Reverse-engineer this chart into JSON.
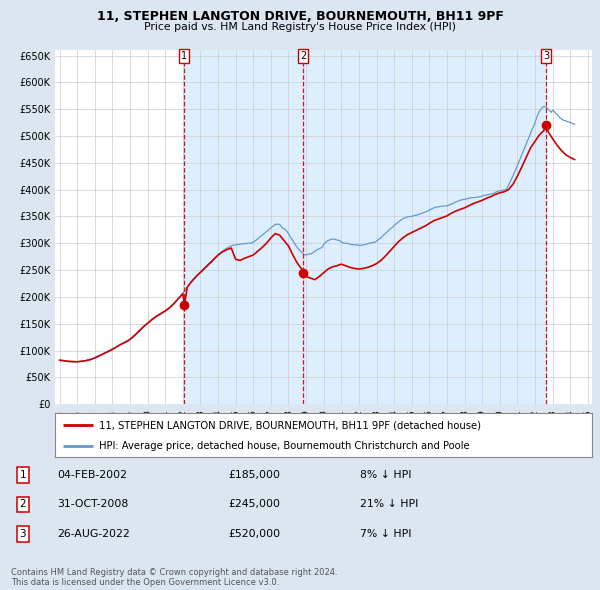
{
  "title": "11, STEPHEN LANGTON DRIVE, BOURNEMOUTH, BH11 9PF",
  "subtitle": "Price paid vs. HM Land Registry's House Price Index (HPI)",
  "property_label": "11, STEPHEN LANGTON DRIVE, BOURNEMOUTH, BH11 9PF (detached house)",
  "hpi_label": "HPI: Average price, detached house, Bournemouth Christchurch and Poole",
  "property_color": "#cc0000",
  "hpi_color": "#6699cc",
  "background_color": "#dce6f1",
  "plot_bg_color": "#ffffff",
  "shade_color": "#ddeeff",
  "ylim": [
    0,
    660000
  ],
  "yticks": [
    0,
    50000,
    100000,
    150000,
    200000,
    250000,
    300000,
    350000,
    400000,
    450000,
    500000,
    550000,
    600000,
    650000
  ],
  "sales": [
    {
      "num": 1,
      "date": 2002.09,
      "price": 185000,
      "label": "04-FEB-2002",
      "pct": "8% ↓ HPI"
    },
    {
      "num": 2,
      "date": 2008.83,
      "price": 245000,
      "label": "31-OCT-2008",
      "pct": "21% ↓ HPI"
    },
    {
      "num": 3,
      "date": 2022.65,
      "price": 520000,
      "label": "26-AUG-2022",
      "pct": "7% ↓ HPI"
    }
  ],
  "copyright": "Contains HM Land Registry data © Crown copyright and database right 2024.\nThis data is licensed under the Open Government Licence v3.0.",
  "xlim": [
    1994.75,
    2025.25
  ],
  "hpi_data_x": [
    1995.0,
    1995.083,
    1995.167,
    1995.25,
    1995.333,
    1995.417,
    1995.5,
    1995.583,
    1995.667,
    1995.75,
    1995.833,
    1995.917,
    1996.0,
    1996.083,
    1996.167,
    1996.25,
    1996.333,
    1996.417,
    1996.5,
    1996.583,
    1996.667,
    1996.75,
    1996.833,
    1996.917,
    1997.0,
    1997.083,
    1997.167,
    1997.25,
    1997.333,
    1997.417,
    1997.5,
    1997.583,
    1997.667,
    1997.75,
    1997.833,
    1997.917,
    1998.0,
    1998.083,
    1998.167,
    1998.25,
    1998.333,
    1998.417,
    1998.5,
    1998.583,
    1998.667,
    1998.75,
    1998.833,
    1998.917,
    1999.0,
    1999.083,
    1999.167,
    1999.25,
    1999.333,
    1999.417,
    1999.5,
    1999.583,
    1999.667,
    1999.75,
    1999.833,
    1999.917,
    2000.0,
    2000.083,
    2000.167,
    2000.25,
    2000.333,
    2000.417,
    2000.5,
    2000.583,
    2000.667,
    2000.75,
    2000.833,
    2000.917,
    2001.0,
    2001.083,
    2001.167,
    2001.25,
    2001.333,
    2001.417,
    2001.5,
    2001.583,
    2001.667,
    2001.75,
    2001.833,
    2001.917,
    2002.0,
    2002.083,
    2002.167,
    2002.25,
    2002.333,
    2002.417,
    2002.5,
    2002.583,
    2002.667,
    2002.75,
    2002.833,
    2002.917,
    2003.0,
    2003.083,
    2003.167,
    2003.25,
    2003.333,
    2003.417,
    2003.5,
    2003.583,
    2003.667,
    2003.75,
    2003.833,
    2003.917,
    2004.0,
    2004.083,
    2004.167,
    2004.25,
    2004.333,
    2004.417,
    2004.5,
    2004.583,
    2004.667,
    2004.75,
    2004.833,
    2004.917,
    2005.0,
    2005.083,
    2005.167,
    2005.25,
    2005.333,
    2005.417,
    2005.5,
    2005.583,
    2005.667,
    2005.75,
    2005.833,
    2005.917,
    2006.0,
    2006.083,
    2006.167,
    2006.25,
    2006.333,
    2006.417,
    2006.5,
    2006.583,
    2006.667,
    2006.75,
    2006.833,
    2006.917,
    2007.0,
    2007.083,
    2007.167,
    2007.25,
    2007.333,
    2007.417,
    2007.5,
    2007.583,
    2007.667,
    2007.75,
    2007.833,
    2007.917,
    2008.0,
    2008.083,
    2008.167,
    2008.25,
    2008.333,
    2008.417,
    2008.5,
    2008.583,
    2008.667,
    2008.75,
    2008.833,
    2008.917,
    2009.0,
    2009.083,
    2009.167,
    2009.25,
    2009.333,
    2009.417,
    2009.5,
    2009.583,
    2009.667,
    2009.75,
    2009.833,
    2009.917,
    2010.0,
    2010.083,
    2010.167,
    2010.25,
    2010.333,
    2010.417,
    2010.5,
    2010.583,
    2010.667,
    2010.75,
    2010.833,
    2010.917,
    2011.0,
    2011.083,
    2011.167,
    2011.25,
    2011.333,
    2011.417,
    2011.5,
    2011.583,
    2011.667,
    2011.75,
    2011.833,
    2011.917,
    2012.0,
    2012.083,
    2012.167,
    2012.25,
    2012.333,
    2012.417,
    2012.5,
    2012.583,
    2012.667,
    2012.75,
    2012.833,
    2012.917,
    2013.0,
    2013.083,
    2013.167,
    2013.25,
    2013.333,
    2013.417,
    2013.5,
    2013.583,
    2013.667,
    2013.75,
    2013.833,
    2013.917,
    2014.0,
    2014.083,
    2014.167,
    2014.25,
    2014.333,
    2014.417,
    2014.5,
    2014.583,
    2014.667,
    2014.75,
    2014.833,
    2014.917,
    2015.0,
    2015.083,
    2015.167,
    2015.25,
    2015.333,
    2015.417,
    2015.5,
    2015.583,
    2015.667,
    2015.75,
    2015.833,
    2015.917,
    2016.0,
    2016.083,
    2016.167,
    2016.25,
    2016.333,
    2016.417,
    2016.5,
    2016.583,
    2016.667,
    2016.75,
    2016.833,
    2016.917,
    2017.0,
    2017.083,
    2017.167,
    2017.25,
    2017.333,
    2017.417,
    2017.5,
    2017.583,
    2017.667,
    2017.75,
    2017.833,
    2017.917,
    2018.0,
    2018.083,
    2018.167,
    2018.25,
    2018.333,
    2018.417,
    2018.5,
    2018.583,
    2018.667,
    2018.75,
    2018.833,
    2018.917,
    2019.0,
    2019.083,
    2019.167,
    2019.25,
    2019.333,
    2019.417,
    2019.5,
    2019.583,
    2019.667,
    2019.75,
    2019.833,
    2019.917,
    2020.0,
    2020.083,
    2020.167,
    2020.25,
    2020.333,
    2020.417,
    2020.5,
    2020.583,
    2020.667,
    2020.75,
    2020.833,
    2020.917,
    2021.0,
    2021.083,
    2021.167,
    2021.25,
    2021.333,
    2021.417,
    2021.5,
    2021.583,
    2021.667,
    2021.75,
    2021.833,
    2021.917,
    2022.0,
    2022.083,
    2022.167,
    2022.25,
    2022.333,
    2022.417,
    2022.5,
    2022.583,
    2022.667,
    2022.75,
    2022.833,
    2022.917,
    2023.0,
    2023.083,
    2023.167,
    2023.25,
    2023.333,
    2023.417,
    2023.5,
    2023.583,
    2023.667,
    2023.75,
    2023.833,
    2023.917,
    2024.0,
    2024.083,
    2024.167,
    2024.25
  ],
  "hpi_data_y": [
    82000,
    81500,
    81000,
    80500,
    80000,
    79500,
    79000,
    79000,
    79000,
    78500,
    78500,
    78800,
    79000,
    79300,
    79700,
    80000,
    80500,
    81200,
    82000,
    82800,
    83500,
    84000,
    84500,
    85500,
    87000,
    88500,
    90000,
    91000,
    92000,
    93500,
    95000,
    96500,
    97500,
    99000,
    100500,
    101800,
    103000,
    104500,
    106000,
    107000,
    108200,
    109500,
    111000,
    112200,
    113500,
    115000,
    116500,
    117800,
    120000,
    122000,
    124500,
    127000,
    129500,
    132000,
    135000,
    137500,
    140000,
    143000,
    146000,
    148000,
    150000,
    152000,
    154500,
    157000,
    159000,
    161000,
    163000,
    164500,
    166000,
    168000,
    170000,
    171500,
    173000,
    175000,
    177000,
    179000,
    181500,
    184000,
    187000,
    190500,
    193500,
    197000,
    200500,
    203500,
    207000,
    211000,
    214500,
    218000,
    222000,
    225500,
    228000,
    231000,
    234000,
    237000,
    240500,
    243000,
    245000,
    247500,
    250000,
    253000,
    255500,
    258500,
    261000,
    263000,
    265000,
    269000,
    272000,
    274500,
    277000,
    280000,
    282500,
    285000,
    287000,
    289000,
    291000,
    292000,
    293500,
    295000,
    296000,
    296500,
    297000,
    297500,
    298000,
    298000,
    298500,
    299000,
    299000,
    299500,
    300000,
    300000,
    300200,
    300500,
    302000,
    304000,
    306000,
    308000,
    310500,
    313000,
    315000,
    317000,
    319500,
    322000,
    324000,
    326500,
    329000,
    331000,
    332500,
    335000,
    335500,
    335500,
    335000,
    332000,
    328000,
    327000,
    325000,
    322000,
    318000,
    313000,
    309000,
    305000,
    300000,
    296000,
    292000,
    289000,
    286000,
    283000,
    280500,
    278500,
    278000,
    279000,
    280000,
    280000,
    281000,
    283000,
    285000,
    287000,
    288500,
    290000,
    291000,
    292500,
    298000,
    301000,
    303000,
    305000,
    306000,
    307500,
    308000,
    307500,
    307000,
    306000,
    305500,
    305000,
    302000,
    301000,
    300000,
    300000,
    300000,
    299500,
    298000,
    297500,
    297500,
    297000,
    297000,
    297000,
    296000,
    296000,
    296500,
    297000,
    297500,
    298000,
    299000,
    300000,
    300500,
    301000,
    301500,
    302000,
    304000,
    306000,
    308500,
    310000,
    313000,
    315500,
    318000,
    320500,
    323000,
    326000,
    328000,
    330000,
    333000,
    335500,
    337500,
    340000,
    342000,
    344000,
    346000,
    347000,
    348000,
    349000,
    349500,
    350000,
    350000,
    351000,
    352000,
    352000,
    353000,
    354000,
    355000,
    356000,
    357000,
    358000,
    359000,
    360000,
    362000,
    363000,
    364500,
    366000,
    367000,
    367500,
    368000,
    368500,
    368800,
    369000,
    369200,
    369500,
    370000,
    371000,
    372000,
    373000,
    374000,
    375500,
    377000,
    378000,
    379000,
    380000,
    381000,
    381500,
    382000,
    382500,
    383000,
    384000,
    384500,
    385000,
    385000,
    385200,
    385500,
    386000,
    386500,
    387000,
    388000,
    389000,
    389500,
    390000,
    390500,
    391000,
    392000,
    392500,
    393000,
    395000,
    396000,
    397000,
    398000,
    398000,
    399000,
    399500,
    400000,
    402000,
    408000,
    414000,
    420000,
    425000,
    432000,
    438000,
    445000,
    452000,
    458000,
    465000,
    472000,
    478000,
    485000,
    492000,
    498000,
    505000,
    512000,
    518000,
    525000,
    533000,
    540000,
    546000,
    550000,
    553000,
    555000,
    554000,
    553000,
    550000,
    547000,
    544000,
    548000,
    546000,
    543000,
    540000,
    537000,
    534000,
    532000,
    530000,
    529000,
    528000,
    527000,
    526000,
    525000,
    524000,
    523000,
    522000
  ],
  "prop_data_x": [
    1995.0,
    1995.25,
    1995.5,
    1995.75,
    1996.0,
    1996.25,
    1996.5,
    1996.75,
    1997.0,
    1997.25,
    1997.5,
    1997.75,
    1998.0,
    1998.25,
    1998.5,
    1998.75,
    1999.0,
    1999.25,
    1999.5,
    1999.75,
    2000.0,
    2000.25,
    2000.5,
    2000.75,
    2001.0,
    2001.25,
    2001.5,
    2001.75,
    2002.0,
    2002.09,
    2002.25,
    2002.5,
    2002.75,
    2003.0,
    2003.25,
    2003.5,
    2003.75,
    2004.0,
    2004.25,
    2004.5,
    2004.75,
    2005.0,
    2005.25,
    2005.5,
    2005.75,
    2006.0,
    2006.25,
    2006.5,
    2006.75,
    2007.0,
    2007.25,
    2007.5,
    2007.75,
    2008.0,
    2008.25,
    2008.5,
    2008.75,
    2008.83,
    2009.0,
    2009.25,
    2009.5,
    2009.75,
    2010.0,
    2010.25,
    2010.5,
    2010.75,
    2011.0,
    2011.25,
    2011.5,
    2011.75,
    2012.0,
    2012.25,
    2012.5,
    2012.75,
    2013.0,
    2013.25,
    2013.5,
    2013.75,
    2014.0,
    2014.25,
    2014.5,
    2014.75,
    2015.0,
    2015.25,
    2015.5,
    2015.75,
    2016.0,
    2016.25,
    2016.5,
    2016.75,
    2017.0,
    2017.25,
    2017.5,
    2017.75,
    2018.0,
    2018.25,
    2018.5,
    2018.75,
    2019.0,
    2019.25,
    2019.5,
    2019.75,
    2020.0,
    2020.25,
    2020.5,
    2020.75,
    2021.0,
    2021.25,
    2021.5,
    2021.75,
    2022.0,
    2022.25,
    2022.5,
    2022.65,
    2022.75,
    2023.0,
    2023.25,
    2023.5,
    2023.75,
    2024.0,
    2024.25
  ],
  "prop_data_y": [
    82000,
    81000,
    80000,
    79500,
    79000,
    80000,
    81000,
    83000,
    86000,
    90000,
    94000,
    98000,
    102000,
    107000,
    112000,
    116000,
    121000,
    128000,
    136000,
    144000,
    151000,
    158000,
    164000,
    169000,
    174000,
    180000,
    188000,
    197000,
    206000,
    185000,
    218000,
    229000,
    238000,
    246000,
    254000,
    262000,
    270000,
    278000,
    284000,
    288000,
    291000,
    270000,
    268000,
    272000,
    275000,
    278000,
    285000,
    292000,
    300000,
    310000,
    318000,
    315000,
    305000,
    295000,
    278000,
    263000,
    252000,
    245000,
    238000,
    235000,
    232000,
    238000,
    245000,
    252000,
    256000,
    258000,
    261000,
    258000,
    255000,
    253000,
    252000,
    253000,
    255000,
    258000,
    262000,
    268000,
    276000,
    285000,
    294000,
    303000,
    310000,
    316000,
    320000,
    324000,
    328000,
    332000,
    337000,
    342000,
    345000,
    348000,
    351000,
    356000,
    360000,
    363000,
    366000,
    370000,
    374000,
    377000,
    380000,
    384000,
    387000,
    391000,
    394000,
    396000,
    400000,
    410000,
    425000,
    442000,
    460000,
    478000,
    490000,
    502000,
    510000,
    520000,
    508000,
    495000,
    483000,
    473000,
    465000,
    460000,
    456000
  ]
}
